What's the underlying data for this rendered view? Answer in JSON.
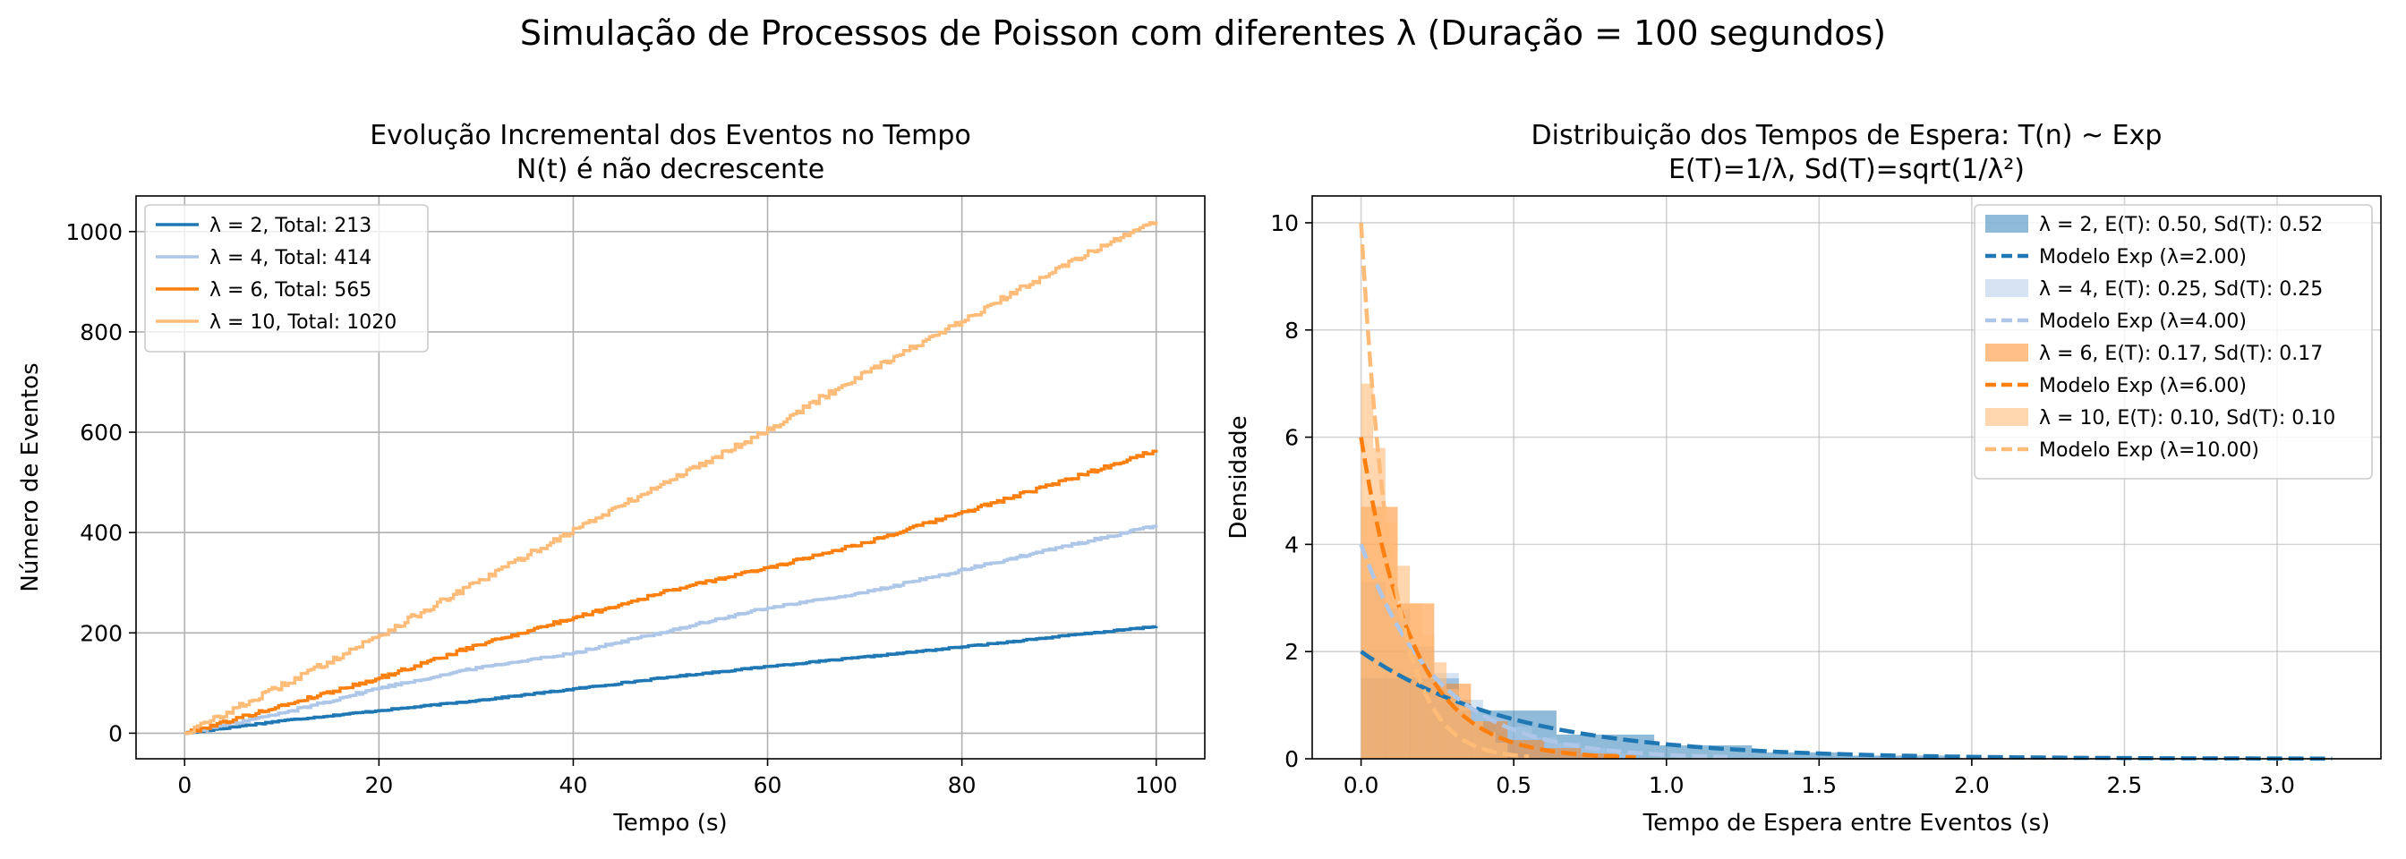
{
  "figure": {
    "suptitle": "Simulação de Processos de Poisson com diferentes λ (Duração = 100 segundos)"
  },
  "chart_data": [
    {
      "type": "line",
      "title": "Evolução Incremental dos Eventos no Tempo",
      "subtitle": "N(t) é não decrescente",
      "xlabel": "Tempo (s)",
      "ylabel": "Número de Eventos",
      "xlim": [
        -5,
        105
      ],
      "ylim": [
        -51,
        1071
      ],
      "xticks": [
        0,
        20,
        40,
        60,
        80,
        100
      ],
      "yticks": [
        0,
        200,
        400,
        600,
        800,
        1000
      ],
      "grid": true,
      "legend_position": "top-left",
      "series": [
        {
          "name": "λ = 2, Total: 213",
          "color": "#1f77b4",
          "x": [
            0,
            10,
            20,
            30,
            40,
            50,
            60,
            70,
            80,
            90,
            100
          ],
          "y": [
            0,
            25,
            45,
            65,
            88,
            112,
            133,
            152,
            172,
            193,
            213
          ]
        },
        {
          "name": "λ = 4, Total: 414",
          "color": "#aec7e8",
          "x": [
            0,
            10,
            20,
            30,
            40,
            50,
            60,
            70,
            80,
            90,
            100
          ],
          "y": [
            0,
            40,
            90,
            130,
            160,
            205,
            250,
            280,
            325,
            370,
            414
          ]
        },
        {
          "name": "λ = 6, Total: 565",
          "color": "#ff7f0e",
          "x": [
            0,
            10,
            20,
            30,
            40,
            50,
            60,
            70,
            80,
            90,
            100
          ],
          "y": [
            0,
            55,
            110,
            175,
            230,
            285,
            330,
            380,
            440,
            500,
            565
          ]
        },
        {
          "name": "λ = 10, Total: 1020",
          "color": "#ffbb78",
          "x": [
            0,
            10,
            20,
            30,
            40,
            50,
            60,
            70,
            80,
            90,
            100
          ],
          "y": [
            0,
            95,
            195,
            300,
            405,
            505,
            605,
            720,
            820,
            930,
            1020
          ]
        }
      ]
    },
    {
      "type": "bar",
      "title": "Distribuição dos Tempos de Espera: T(n) ~ Exp",
      "subtitle": "E(T)=1/λ, Sd(T)=sqrt(1/λ²)",
      "xlabel": "Tempo de Espera entre Eventos (s)",
      "ylabel": "Densidade",
      "xlim": [
        -0.16,
        3.34
      ],
      "ylim": [
        0,
        10.5
      ],
      "xticks": [
        0.0,
        0.5,
        1.0,
        1.5,
        2.0,
        2.5,
        3.0
      ],
      "xtick_labels": [
        "0.0",
        "0.5",
        "1.0",
        "1.5",
        "2.0",
        "2.5",
        "3.0"
      ],
      "yticks": [
        0,
        2,
        4,
        6,
        8,
        10
      ],
      "grid": true,
      "legend_position": "top-right",
      "histograms": [
        {
          "name": "λ = 2, E(T): 0.50, Sd(T): 0.52",
          "color": "#1f77b4",
          "opacity": 0.5,
          "bin_width": 0.32,
          "bin_starts": [
            0.0,
            0.32,
            0.64,
            0.96,
            1.28,
            1.6
          ],
          "values": [
            1.5,
            0.9,
            0.45,
            0.25,
            0.12,
            0.06
          ]
        },
        {
          "name": "λ = 4, E(T): 0.25, Sd(T): 0.25",
          "color": "#aec7e8",
          "opacity": 0.5,
          "bin_width": 0.08,
          "bin_starts": [
            0.0,
            0.08,
            0.16,
            0.24,
            0.32,
            0.4,
            0.48,
            0.56,
            0.64,
            0.72,
            0.8
          ],
          "values": [
            3.3,
            2.8,
            2.1,
            1.6,
            1.1,
            0.8,
            0.6,
            0.4,
            0.3,
            0.2,
            0.1
          ]
        },
        {
          "name": "λ = 6, E(T): 0.17, Sd(T): 0.17",
          "color": "#ff7f0e",
          "opacity": 0.5,
          "bin_width": 0.12,
          "bin_starts": [
            0.0,
            0.12,
            0.24,
            0.36,
            0.48,
            0.6,
            0.72
          ],
          "values": [
            4.7,
            2.9,
            1.4,
            0.7,
            0.35,
            0.2,
            0.1
          ]
        },
        {
          "name": "λ = 10, E(T): 0.10, Sd(T): 0.10",
          "color": "#ffbb78",
          "opacity": 0.6,
          "bin_width": 0.04,
          "bin_starts": [
            0.0,
            0.04,
            0.08,
            0.12,
            0.16,
            0.2,
            0.24,
            0.28,
            0.32,
            0.36,
            0.4,
            0.44
          ],
          "values": [
            7.0,
            5.8,
            4.4,
            3.6,
            2.9,
            2.3,
            1.8,
            1.3,
            1.0,
            0.7,
            0.5,
            0.3
          ]
        }
      ],
      "models": [
        {
          "name": "Modelo Exp (λ=2.00)",
          "lambda": 2,
          "color": "#1f77b4",
          "x_max": 3.18
        },
        {
          "name": "Modelo Exp (λ=4.00)",
          "lambda": 4,
          "color": "#aec7e8",
          "x_max": 1.2
        },
        {
          "name": "Modelo Exp (λ=6.00)",
          "lambda": 6,
          "color": "#ff7f0e",
          "x_max": 0.9
        },
        {
          "name": "Modelo Exp (λ=10.00)",
          "lambda": 10,
          "color": "#ffbb78",
          "x_max": 0.55
        }
      ]
    }
  ]
}
